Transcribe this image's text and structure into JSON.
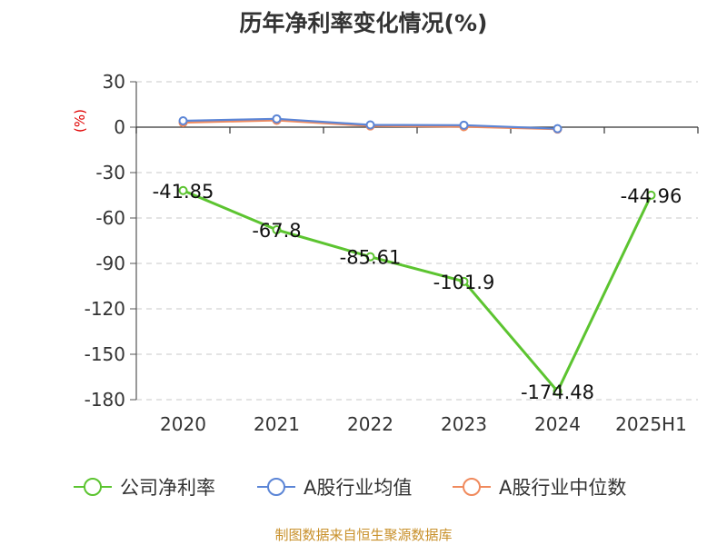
{
  "chart_data": {
    "type": "line",
    "title": "历年净利率变化情况(%)",
    "ylabel": "(%)",
    "xlabel": "",
    "categories": [
      "2020",
      "2021",
      "2022",
      "2023",
      "2024",
      "2025H1"
    ],
    "ylim": [
      -180,
      30
    ],
    "yticks": [
      30,
      0,
      -30,
      -60,
      -90,
      -120,
      -150,
      -180
    ],
    "grid": true,
    "legend_position": "bottom",
    "series": [
      {
        "name": "公司净利率",
        "color": "#5cc430",
        "values": [
          -41.85,
          -67.8,
          -85.61,
          -101.9,
          -174.48,
          -44.96
        ],
        "labels": [
          "-41.85",
          "-67.8",
          "-85.61",
          "-101.9",
          "-174.48",
          "-44.96"
        ]
      },
      {
        "name": "A股行业均值",
        "color": "#5b85d6",
        "values": [
          4.2,
          5.5,
          1.5,
          1.3,
          -1.0,
          null
        ]
      },
      {
        "name": "A股行业中位数",
        "color": "#f08a5d",
        "values": [
          3.0,
          4.5,
          0.8,
          0.3,
          -1.3,
          null
        ]
      }
    ]
  },
  "source": "制图数据来自恒生聚源数据库"
}
